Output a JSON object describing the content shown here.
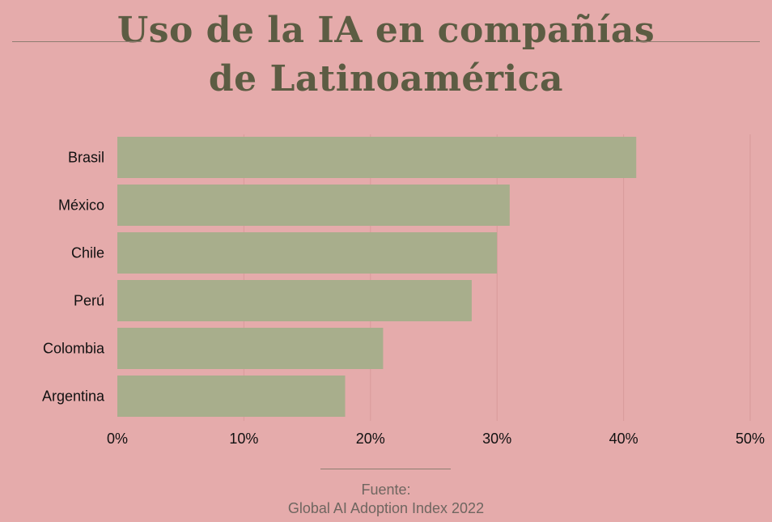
{
  "colors": {
    "background": "#e5abab",
    "bar": "#a8ae8c",
    "title": "#5c5c43",
    "grid": "#d89a9a",
    "tick_text": "#111111",
    "source_text": "#6f6660"
  },
  "chart_data": {
    "type": "bar",
    "orientation": "horizontal",
    "title": "Uso de la IA en compañías de Latinoamérica",
    "title_lines": [
      "Uso de la IA en compañías",
      "de Latinoamérica"
    ],
    "categories": [
      "Brasil",
      "México",
      "Chile",
      "Perú",
      "Colombia",
      "Argentina"
    ],
    "values": [
      41,
      31,
      30,
      28,
      21,
      18
    ],
    "unit": "%",
    "xlim": [
      0,
      50
    ],
    "xticks": [
      0,
      10,
      20,
      30,
      40,
      50
    ],
    "xtick_labels": [
      "0%",
      "10%",
      "20%",
      "30%",
      "40%",
      "50%"
    ],
    "grid": "vertical",
    "legend": "none"
  },
  "source": {
    "label": "Fuente:",
    "text": "Global AI Adoption Index 2022"
  }
}
